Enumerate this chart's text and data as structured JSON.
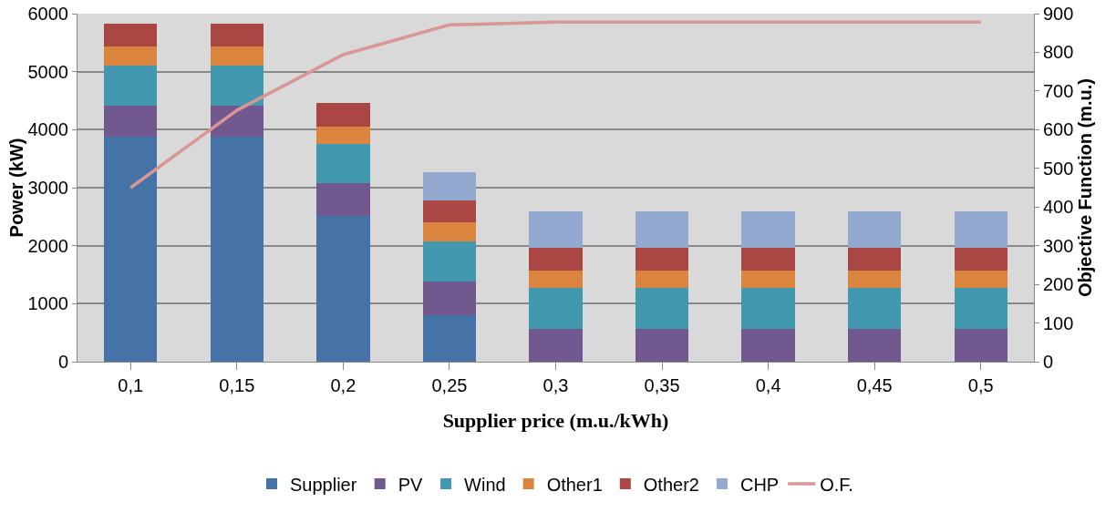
{
  "chart_data": {
    "type": "bar",
    "stacked": true,
    "xlabel": "Supplier price (m.u./kWh)",
    "ylabel": "Power (kW)",
    "y2label": "Objective Function (m.u.)",
    "categories": [
      "0,1",
      "0,15",
      "0,2",
      "0,25",
      "0,3",
      "0,35",
      "0,4",
      "0,45",
      "0,5"
    ],
    "series": [
      {
        "name": "Supplier",
        "color": "#4572a7",
        "values": [
          3880,
          3880,
          2520,
          800,
          0,
          0,
          0,
          0,
          0
        ]
      },
      {
        "name": "PV",
        "color": "#71588f",
        "values": [
          540,
          540,
          560,
          590,
          560,
          560,
          560,
          560,
          560
        ]
      },
      {
        "name": "Wind",
        "color": "#4198af",
        "values": [
          690,
          690,
          680,
          690,
          710,
          710,
          710,
          710,
          710
        ]
      },
      {
        "name": "Other1",
        "color": "#db843d",
        "values": [
          320,
          320,
          300,
          320,
          300,
          300,
          300,
          300,
          300
        ]
      },
      {
        "name": "Other2",
        "color": "#aa4643",
        "values": [
          390,
          390,
          400,
          380,
          390,
          390,
          390,
          390,
          390
        ]
      },
      {
        "name": "CHP",
        "color": "#93a9cf",
        "values": [
          0,
          0,
          0,
          490,
          630,
          630,
          630,
          630,
          630
        ]
      },
      {
        "name": "O.F.",
        "type": "line",
        "axis": "y2",
        "color": "#d99694",
        "line_style": "solid",
        "marker": "none",
        "values": [
          450,
          650,
          794,
          871,
          878,
          878,
          878,
          878,
          878
        ]
      }
    ],
    "ylim": [
      0,
      6000
    ],
    "yticks": [
      0,
      1000,
      2000,
      3000,
      4000,
      5000,
      6000
    ],
    "y2lim": [
      0,
      900
    ],
    "y2ticks": [
      0,
      100,
      200,
      300,
      400,
      500,
      600,
      700,
      800,
      900
    ],
    "grid": "y",
    "legend": "bottom"
  }
}
